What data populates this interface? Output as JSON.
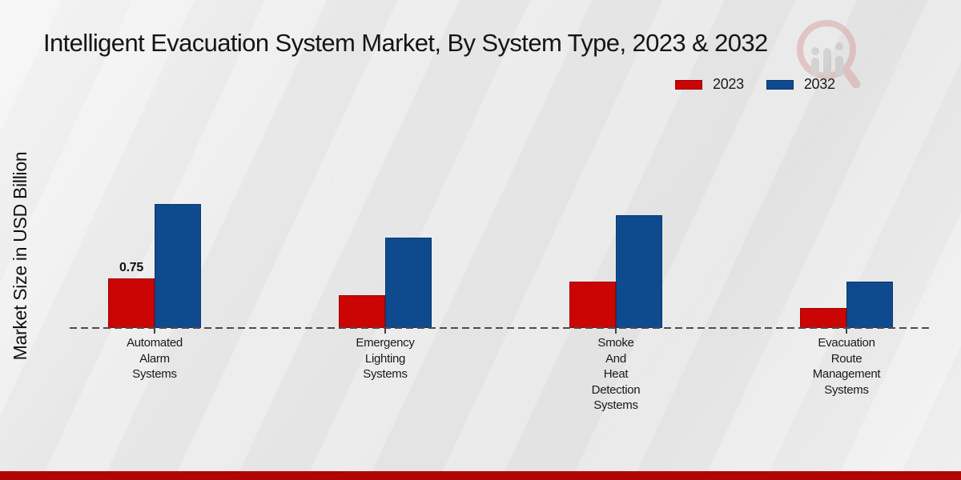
{
  "title": "Intelligent Evacuation System Market, By System Type, 2023 & 2032",
  "y_axis_label": "Market Size in USD Billion",
  "legend": [
    {
      "label": "2023",
      "color": "#cb0404"
    },
    {
      "label": "2032",
      "color": "#0e4a8d"
    }
  ],
  "watermark_icon": "magnifier-bar-chart-logo",
  "footer": {
    "accent_color": "#b10404"
  },
  "colors": {
    "series_2023": "#cb0404",
    "series_2032": "#0e4a8d",
    "baseline": "#4d4d4d",
    "background": "#eaeaea"
  },
  "chart_data": {
    "type": "bar",
    "title": "Intelligent Evacuation System Market, By System Type, 2023 & 2032",
    "xlabel": "",
    "ylabel": "Market Size in USD Billion",
    "categories": [
      "Automated\nAlarm\nSystems",
      "Emergency\nLighting\nSystems",
      "Smoke\nAnd\nHeat\nDetection\nSystems",
      "Evacuation\nRoute\nManagement\nSystems"
    ],
    "series": [
      {
        "name": "2023",
        "color": "#cb0404",
        "values": [
          0.75,
          0.49,
          0.7,
          0.3
        ],
        "labels": [
          "0.75",
          "",
          "",
          ""
        ]
      },
      {
        "name": "2032",
        "color": "#0e4a8d",
        "values": [
          1.88,
          1.37,
          1.71,
          0.7
        ],
        "labels": [
          "",
          "",
          "",
          ""
        ]
      }
    ],
    "ylim": [
      0,
      2.2
    ],
    "grid": false,
    "axis_style": "dashed-baseline-only",
    "legend_position": "top-right"
  }
}
